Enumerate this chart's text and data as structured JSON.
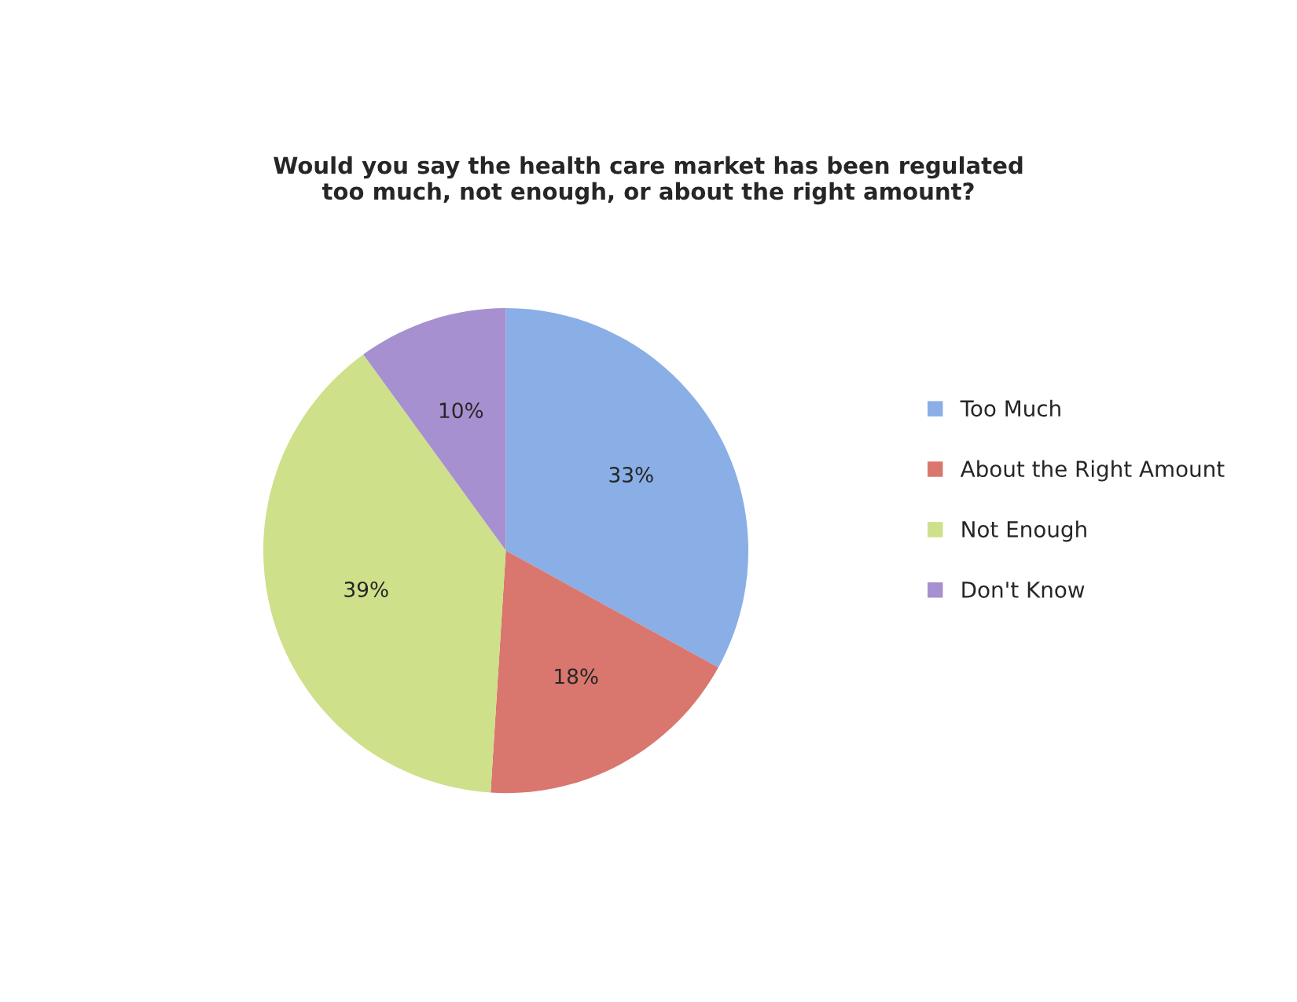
{
  "chart_data": {
    "type": "pie",
    "title": "Would you say the health care market has been regulated\ntoo much, not enough, or about the right amount?",
    "categories": [
      "Too Much",
      "About the Right Amount",
      "Not Enough",
      "Don't Know"
    ],
    "values": [
      33,
      18,
      39,
      10
    ],
    "colors": [
      "#8aaee6",
      "#d9776f",
      "#cfe08a",
      "#a690cf"
    ],
    "value_labels": [
      "33%",
      "18%",
      "39%",
      "10%"
    ],
    "legend": "right"
  }
}
